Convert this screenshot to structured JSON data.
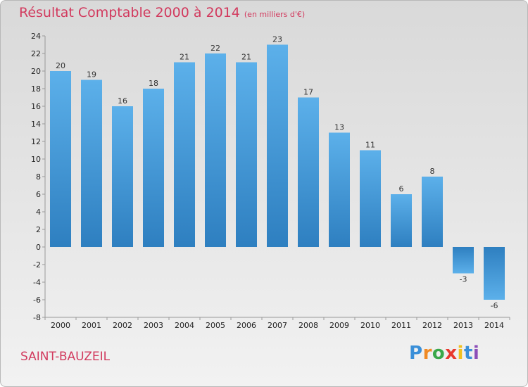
{
  "chart_data": {
    "type": "bar",
    "title": "Résultat Comptable 2000 à 2014",
    "subtitle": "(en milliers d'€)",
    "categories": [
      "2000",
      "2001",
      "2002",
      "2003",
      "2004",
      "2005",
      "2006",
      "2007",
      "2008",
      "2009",
      "2010",
      "2011",
      "2012",
      "2013",
      "2014"
    ],
    "values": [
      20,
      19,
      16,
      18,
      21,
      22,
      21,
      23,
      17,
      13,
      11,
      6,
      8,
      -3,
      -6
    ],
    "ylim": [
      -8,
      24
    ],
    "yticks": [
      -8,
      -6,
      -4,
      -2,
      0,
      2,
      4,
      6,
      8,
      10,
      12,
      14,
      16,
      18,
      20,
      22,
      24
    ],
    "xlabel": "",
    "ylabel": "",
    "grid": false,
    "colors": {
      "bar_light": "#5cb0ea",
      "bar_dark": "#2e7fc0",
      "accent": "#d23a5e"
    }
  },
  "commune": "SAINT-BAUZEIL",
  "logo": {
    "letters": [
      "P",
      "r",
      "o",
      "x",
      "i",
      "t",
      "i"
    ],
    "colors": [
      "#3a8fd8",
      "#f08a24",
      "#3aa84a",
      "#e8392e",
      "#f0c020",
      "#3a8fd8",
      "#8c4fb8"
    ]
  }
}
